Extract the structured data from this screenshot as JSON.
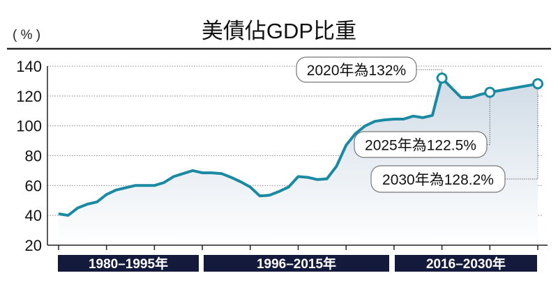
{
  "chart_data": {
    "type": "area",
    "title": "美債佔GDP比重",
    "ylabel": "( % )",
    "xlabel": "",
    "ylim": [
      20,
      140
    ],
    "yticks": [
      20,
      40,
      60,
      80,
      100,
      120,
      140
    ],
    "xlim": [
      1980,
      2030
    ],
    "grid": true,
    "line_color": "#1a8aa2",
    "band_color": "#141a3c",
    "x": [
      1980,
      1981,
      1982,
      1983,
      1984,
      1985,
      1986,
      1987,
      1988,
      1989,
      1990,
      1991,
      1992,
      1993,
      1994,
      1995,
      1996,
      1997,
      1998,
      1999,
      2000,
      2001,
      2002,
      2003,
      2004,
      2005,
      2006,
      2007,
      2008,
      2009,
      2010,
      2011,
      2012,
      2013,
      2014,
      2015,
      2016,
      2017,
      2018,
      2019,
      2020,
      2021,
      2022,
      2023,
      2024,
      2025,
      2030
    ],
    "values": [
      41,
      40,
      45,
      47.5,
      49,
      54,
      57,
      58.5,
      60,
      60,
      60,
      62,
      66,
      68,
      70,
      68.5,
      68.5,
      68,
      65.5,
      62.5,
      59,
      53,
      53.5,
      56,
      59,
      66,
      65.5,
      64,
      64.5,
      73,
      87,
      95,
      100,
      103,
      104,
      104.5,
      104.5,
      106.5,
      105.5,
      107,
      132,
      125.5,
      119,
      119,
      121,
      122.5,
      128.2
    ],
    "periods": [
      {
        "label": "1980–1995年",
        "from": 1980,
        "to": 1995
      },
      {
        "label": "1996–2015年",
        "from": 1996,
        "to": 2015
      },
      {
        "label": "2016–2030年",
        "from": 2016,
        "to": 2030
      }
    ],
    "annotations": [
      {
        "year": 2020,
        "value": 132,
        "label": "2020年為132%"
      },
      {
        "year": 2025,
        "value": 122.5,
        "label": "2025年為122.5%"
      },
      {
        "year": 2030,
        "value": 128.2,
        "label": "2030年為128.2%"
      }
    ]
  }
}
